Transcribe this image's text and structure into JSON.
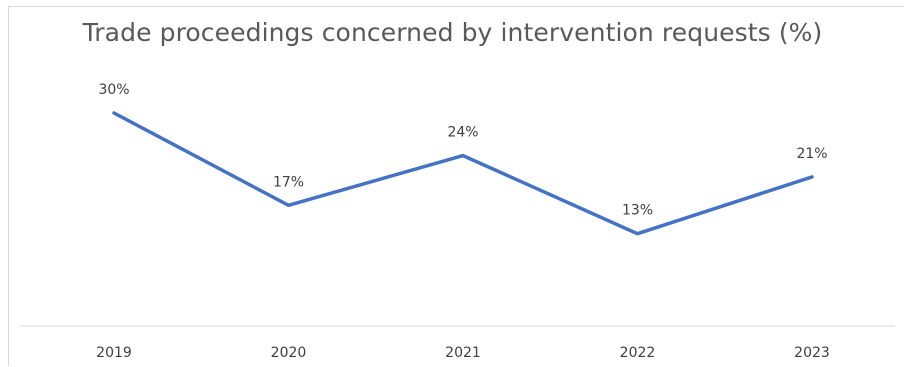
{
  "chart_data": {
    "type": "line",
    "title": "Trade proceedings concerned by intervention requests (%)",
    "categories": [
      "2019",
      "2020",
      "2021",
      "2022",
      "2023"
    ],
    "values": [
      30,
      17,
      24,
      13,
      21
    ],
    "data_labels": [
      "30%",
      "17%",
      "24%",
      "13%",
      "21%"
    ],
    "ylim": [
      0,
      35
    ],
    "grid": false,
    "legend": "none",
    "line_color": "#4472C4"
  }
}
